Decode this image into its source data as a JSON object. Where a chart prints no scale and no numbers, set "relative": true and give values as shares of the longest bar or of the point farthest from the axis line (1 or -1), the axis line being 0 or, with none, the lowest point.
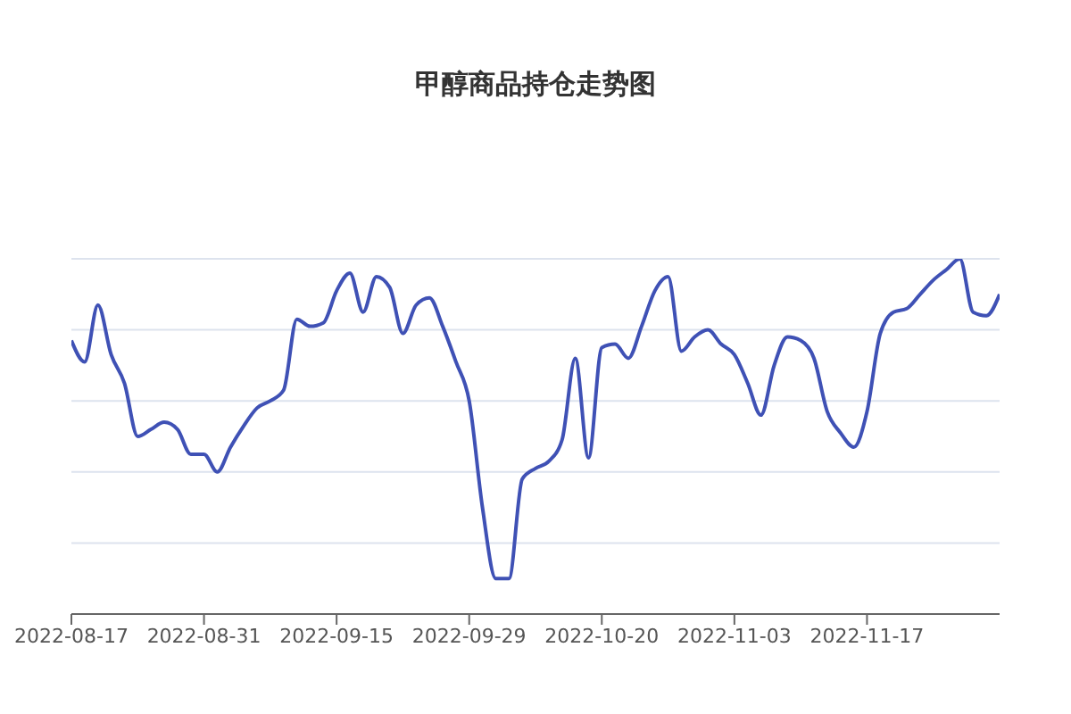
{
  "chart_data": {
    "type": "line",
    "title": "甲醇商品持仓走势图",
    "relative": true,
    "grid": "y",
    "marker": "none",
    "line_style": "solid",
    "legend": false,
    "categories": [
      "2022-08-17",
      null,
      null,
      null,
      null,
      null,
      null,
      null,
      null,
      null,
      "2022-08-31",
      null,
      null,
      null,
      null,
      null,
      null,
      null,
      null,
      null,
      "2022-09-15",
      null,
      null,
      null,
      null,
      null,
      null,
      null,
      null,
      null,
      "2022-09-29",
      null,
      null,
      null,
      null,
      null,
      null,
      null,
      null,
      null,
      "2022-10-20",
      null,
      null,
      null,
      null,
      null,
      null,
      null,
      null,
      null,
      "2022-11-03",
      null,
      null,
      null,
      null,
      null,
      null,
      null,
      null,
      null,
      "2022-11-17",
      null,
      null,
      null,
      null,
      null,
      null,
      null,
      null,
      null,
      null
    ],
    "series": [
      {
        "color": "#3f51b5",
        "values": [
          0.77,
          0.71,
          0.87,
          0.73,
          0.65,
          0.5,
          0.52,
          0.54,
          0.52,
          0.45,
          0.45,
          0.4,
          0.47,
          0.53,
          0.58,
          0.6,
          0.63,
          0.83,
          0.81,
          0.82,
          0.91,
          0.96,
          0.85,
          0.95,
          0.92,
          0.79,
          0.87,
          0.89,
          0.81,
          0.71,
          0.6,
          0.3,
          0.1,
          0.1,
          0.38,
          0.41,
          0.43,
          0.49,
          0.72,
          0.44,
          0.75,
          0.76,
          0.72,
          0.81,
          0.91,
          0.95,
          0.74,
          0.78,
          0.8,
          0.76,
          0.73,
          0.65,
          0.56,
          0.7,
          0.78,
          0.77,
          0.72,
          0.57,
          0.51,
          0.47,
          0.57,
          0.79,
          0.85,
          0.86,
          0.9,
          0.94,
          0.97,
          1,
          0.85,
          0.84,
          0.9
        ]
      }
    ]
  }
}
